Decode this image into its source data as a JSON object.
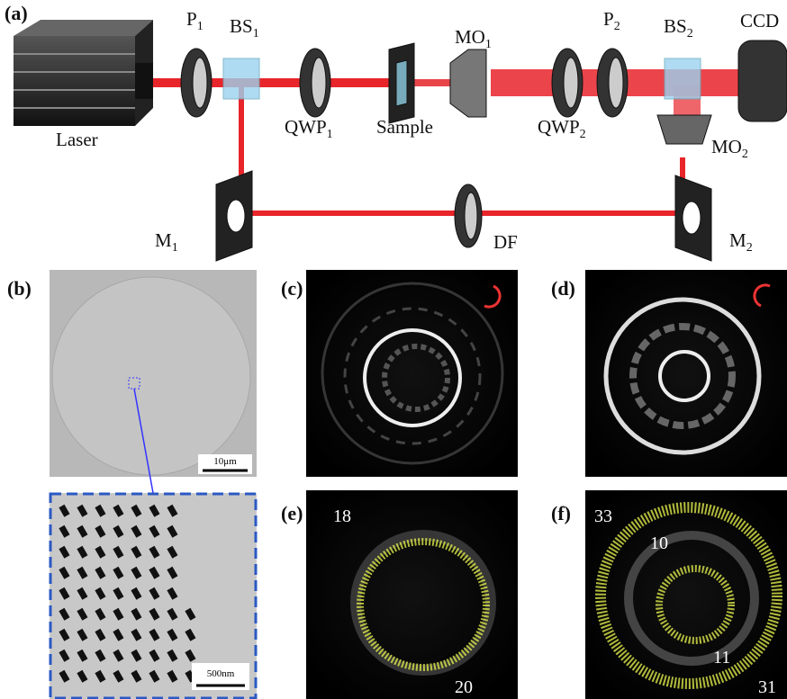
{
  "panel_a": {
    "label": "(a)",
    "components": {
      "p1": {
        "base": "P",
        "sub": "1"
      },
      "bs1": {
        "base": "BS",
        "sub": "1"
      },
      "ccd": "CCD",
      "mo1": {
        "base": "MO",
        "sub": "1"
      },
      "p2": {
        "base": "P",
        "sub": "2"
      },
      "bs2": {
        "base": "BS",
        "sub": "2"
      },
      "laser": "Laser",
      "qwp1": {
        "base": "QWP",
        "sub": "1"
      },
      "sample": "Sample",
      "qwp2": {
        "base": "QWP",
        "sub": "2"
      },
      "mo2": {
        "base": "MO",
        "sub": "2"
      },
      "m1": {
        "base": "M",
        "sub": "1"
      },
      "df": "DF",
      "m2": {
        "base": "M",
        "sub": "2"
      }
    }
  },
  "panel_b": {
    "label": "(b)",
    "scale_bar": "10μm",
    "inset_scale_bar": "500nm"
  },
  "panel_c": {
    "label": "(c)"
  },
  "panel_d": {
    "label": "(d)"
  },
  "panel_e": {
    "label": "(e)",
    "numbers": [
      18,
      20
    ]
  },
  "panel_f": {
    "label": "(f)",
    "numbers": [
      33,
      10,
      11,
      31
    ]
  }
}
